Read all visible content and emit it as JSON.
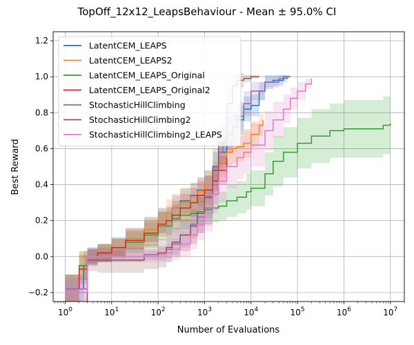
{
  "chart_data": {
    "type": "line",
    "title": "TopOff_12x12_LeapsBehaviour - Mean ± 95.0% CI",
    "xlabel": "Number of Evaluations",
    "ylabel": "Best Reward",
    "xscale": "log",
    "xlim": [
      0.55,
      20000000
    ],
    "ylim": [
      -0.25,
      1.25
    ],
    "xticks": [
      {
        "v": 1,
        "base": "10",
        "exp": "0"
      },
      {
        "v": 10,
        "base": "10",
        "exp": "1"
      },
      {
        "v": 100,
        "base": "10",
        "exp": "2"
      },
      {
        "v": 1000,
        "base": "10",
        "exp": "3"
      },
      {
        "v": 10000,
        "base": "10",
        "exp": "4"
      },
      {
        "v": 100000,
        "base": "10",
        "exp": "5"
      },
      {
        "v": 1000000,
        "base": "10",
        "exp": "6"
      },
      {
        "v": 10000000,
        "base": "10",
        "exp": "7"
      }
    ],
    "yticks": [
      "−0.2",
      "0.0",
      "0.2",
      "0.4",
      "0.6",
      "0.8",
      "1.0",
      "1.2"
    ],
    "ytick_values": [
      -0.2,
      0.0,
      0.2,
      0.4,
      0.6,
      0.8,
      1.0,
      1.2
    ],
    "grid": true,
    "legend_position": "upper-left",
    "series": [
      {
        "name": "LatentCEM_LEAPS",
        "color": "#1f77b4",
        "x": [
          1,
          2,
          2.5,
          3,
          5,
          10,
          20,
          50,
          100,
          200,
          300,
          500,
          700,
          1000,
          1500,
          2000,
          3000,
          4000,
          5000,
          7000,
          10000,
          15000,
          20000,
          30000,
          50000,
          70000
        ],
        "y": [
          -0.18,
          -0.18,
          -0.05,
          0.0,
          0.02,
          0.05,
          0.1,
          0.15,
          0.2,
          0.27,
          0.31,
          0.34,
          0.37,
          0.4,
          0.5,
          0.58,
          0.68,
          0.72,
          0.76,
          0.82,
          0.84,
          0.92,
          0.97,
          0.98,
          1.0,
          1.0
        ],
        "band": [
          0.08,
          0.08,
          0.08,
          0.05,
          0.05,
          0.06,
          0.06,
          0.07,
          0.07,
          0.07,
          0.07,
          0.07,
          0.07,
          0.08,
          0.08,
          0.09,
          0.09,
          0.08,
          0.08,
          0.07,
          0.06,
          0.05,
          0.04,
          0.03,
          0.01,
          0.01
        ]
      },
      {
        "name": "LatentCEM_LEAPS2",
        "color": "#ff7f0e",
        "x": [
          1,
          2,
          3,
          5,
          10,
          20,
          50,
          100,
          150,
          200,
          300,
          500,
          700,
          1000,
          1500,
          2000,
          3000,
          4000,
          5000,
          7000,
          10000,
          15000,
          18000
        ],
        "y": [
          -0.18,
          -0.05,
          0.0,
          0.02,
          0.05,
          0.1,
          0.15,
          0.2,
          0.24,
          0.27,
          0.3,
          0.33,
          0.36,
          0.4,
          0.45,
          0.52,
          0.58,
          0.6,
          0.61,
          0.63,
          0.68,
          0.73,
          0.76
        ],
        "band": [
          0.08,
          0.08,
          0.04,
          0.05,
          0.05,
          0.06,
          0.07,
          0.07,
          0.08,
          0.08,
          0.08,
          0.08,
          0.08,
          0.08,
          0.08,
          0.08,
          0.08,
          0.08,
          0.08,
          0.08,
          0.07,
          0.06,
          0.05
        ]
      },
      {
        "name": "LatentCEM_LEAPS_Original",
        "color": "#2ca02c",
        "x": [
          1,
          2,
          3,
          5,
          10,
          20,
          50,
          100,
          200,
          300,
          500,
          700,
          1000,
          1500,
          2000,
          3000,
          5000,
          8000,
          10000,
          20000,
          30000,
          50000,
          100000,
          200000,
          500000,
          1000000,
          3000000,
          7000000,
          10000000
        ],
        "y": [
          -0.18,
          -0.05,
          0.0,
          0.02,
          0.05,
          0.08,
          0.12,
          0.17,
          0.21,
          0.23,
          0.24,
          0.25,
          0.26,
          0.27,
          0.28,
          0.31,
          0.33,
          0.36,
          0.38,
          0.46,
          0.53,
          0.58,
          0.63,
          0.67,
          0.7,
          0.71,
          0.71,
          0.73,
          0.74
        ],
        "band": [
          0.08,
          0.08,
          0.04,
          0.05,
          0.05,
          0.06,
          0.07,
          0.08,
          0.08,
          0.08,
          0.08,
          0.08,
          0.08,
          0.08,
          0.08,
          0.09,
          0.09,
          0.1,
          0.1,
          0.12,
          0.14,
          0.14,
          0.14,
          0.15,
          0.15,
          0.16,
          0.16,
          0.16,
          0.16
        ]
      },
      {
        "name": "LatentCEM_LEAPS_Original2",
        "color": "#d62728",
        "x": [
          1,
          2,
          3,
          5,
          10,
          20,
          50,
          100,
          150,
          200,
          300,
          500,
          700,
          1000,
          1500,
          2000,
          3000
        ],
        "y": [
          -0.18,
          -0.07,
          0.0,
          0.02,
          0.05,
          0.09,
          0.13,
          0.18,
          0.2,
          0.23,
          0.27,
          0.3,
          0.34,
          0.37,
          0.42,
          0.48,
          0.55
        ],
        "band": [
          0.08,
          0.08,
          0.04,
          0.05,
          0.05,
          0.06,
          0.07,
          0.07,
          0.08,
          0.08,
          0.08,
          0.08,
          0.08,
          0.08,
          0.08,
          0.08,
          0.08
        ]
      },
      {
        "name": "StochasticHillClimbing",
        "color": "#9467bd",
        "x": [
          1,
          2,
          3,
          5,
          10,
          20,
          50,
          100,
          150,
          200,
          300,
          500,
          700,
          1000,
          1500,
          2000,
          2500,
          3000,
          4000,
          5000,
          7000,
          10000,
          20000,
          40000,
          60000
        ],
        "y": [
          -0.18,
          -0.18,
          0.0,
          0.0,
          0.0,
          0.0,
          0.01,
          0.02,
          0.04,
          0.07,
          0.12,
          0.18,
          0.22,
          0.27,
          0.4,
          0.58,
          0.64,
          0.68,
          0.72,
          0.78,
          0.85,
          0.92,
          0.97,
          0.99,
          1.0
        ],
        "band": [
          0.06,
          0.06,
          0.05,
          0.03,
          0.03,
          0.03,
          0.03,
          0.04,
          0.05,
          0.06,
          0.07,
          0.08,
          0.09,
          0.1,
          0.11,
          0.11,
          0.1,
          0.1,
          0.09,
          0.08,
          0.07,
          0.05,
          0.03,
          0.02,
          0.01
        ]
      },
      {
        "name": "StochasticHillClimbing2",
        "color": "#8c564b",
        "x": [
          1,
          2,
          3,
          5,
          10,
          20,
          50,
          100,
          150,
          200,
          300,
          500,
          700,
          1000,
          1500,
          2000,
          3000,
          4000,
          5000,
          7000,
          10000,
          15000
        ],
        "y": [
          -0.3,
          -0.3,
          -0.02,
          -0.02,
          -0.02,
          -0.02,
          0.0,
          0.02,
          0.05,
          0.08,
          0.12,
          0.17,
          0.24,
          0.33,
          0.48,
          0.63,
          0.85,
          0.95,
          0.98,
          0.99,
          1.0,
          1.0
        ],
        "band": [
          0.06,
          0.06,
          0.06,
          0.07,
          0.07,
          0.07,
          0.07,
          0.08,
          0.08,
          0.08,
          0.09,
          0.1,
          0.11,
          0.12,
          0.12,
          0.12,
          0.09,
          0.06,
          0.04,
          0.02,
          0.01,
          0.01
        ]
      },
      {
        "name": "StochasticHillClimbing2_LEAPS",
        "color": "#e377c2",
        "x": [
          1,
          2,
          3,
          5,
          10,
          20,
          50,
          100,
          150,
          200,
          300,
          500,
          700,
          1000,
          1500,
          2000,
          3000,
          5000,
          7000,
          10000,
          20000,
          30000,
          50000,
          70000,
          100000,
          150000,
          200000
        ],
        "y": [
          -0.2,
          -0.2,
          0.0,
          0.0,
          0.0,
          0.0,
          0.0,
          0.01,
          0.02,
          0.04,
          0.07,
          0.12,
          0.18,
          0.24,
          0.35,
          0.42,
          0.5,
          0.55,
          0.58,
          0.62,
          0.7,
          0.76,
          0.82,
          0.88,
          0.92,
          0.96,
          0.99
        ],
        "band": [
          0.06,
          0.06,
          0.05,
          0.03,
          0.03,
          0.03,
          0.03,
          0.04,
          0.05,
          0.06,
          0.07,
          0.08,
          0.09,
          0.1,
          0.11,
          0.12,
          0.12,
          0.12,
          0.12,
          0.12,
          0.11,
          0.1,
          0.08,
          0.06,
          0.05,
          0.03,
          0.02
        ]
      }
    ]
  }
}
